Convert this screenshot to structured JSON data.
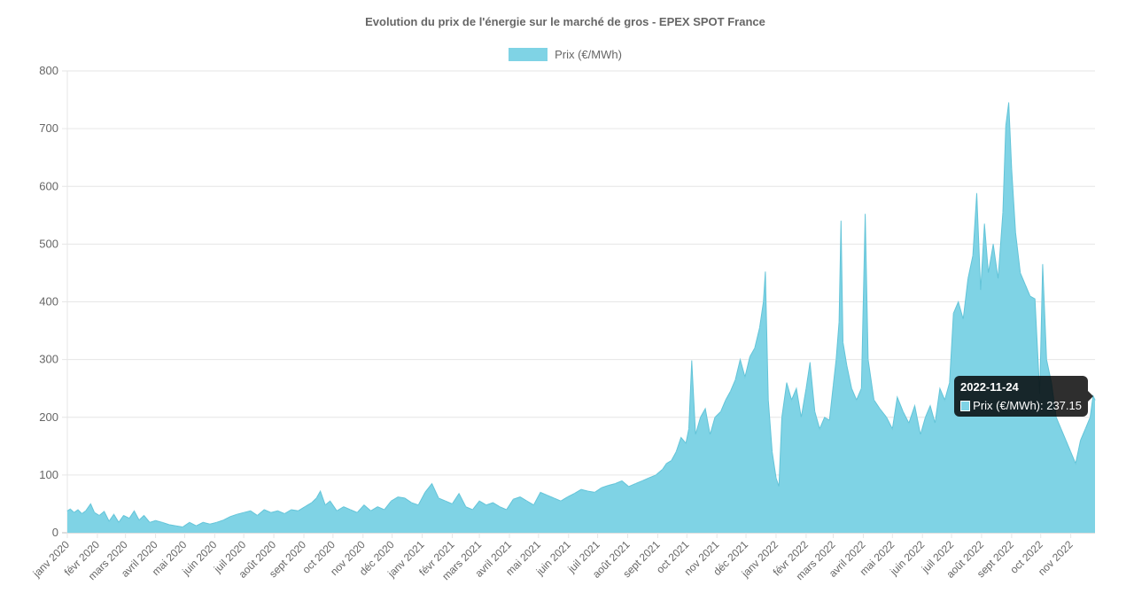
{
  "chart_data": {
    "type": "area",
    "title": "Evolution du prix de l'énergie sur le marché de gros - EPEX SPOT France",
    "legend": {
      "position": "top",
      "entries": [
        "Prix (€/MWh)"
      ]
    },
    "ylim": [
      0,
      800
    ],
    "yticks": [
      0,
      100,
      200,
      300,
      400,
      500,
      600,
      700,
      800
    ],
    "xlabels": [
      "janv 2020",
      "févr 2020",
      "mars 2020",
      "avril 2020",
      "mai 2020",
      "juin 2020",
      "juil 2020",
      "août 2020",
      "sept 2020",
      "oct 2020",
      "nov 2020",
      "déc 2020",
      "janv 2021",
      "févr 2021",
      "mars 2021",
      "avril 2021",
      "mai 2021",
      "juin 2021",
      "juil 2021",
      "août 2021",
      "sept 2021",
      "oct 2021",
      "nov 2021",
      "déc 2021",
      "janv 2022",
      "févr 2022",
      "mars 2022",
      "avril 2022",
      "mai 2022",
      "juin 2022",
      "juil 2022",
      "août 2022",
      "sept 2022",
      "oct 2022",
      "nov 2022"
    ],
    "x_start": "2020-01-01",
    "x_end": "2022-11-26",
    "grid": true,
    "color": "#7fd3e5",
    "series": [
      {
        "name": "Prix (€/MWh)",
        "points": [
          [
            "2020-01-01",
            38
          ],
          [
            "2020-01-04",
            41
          ],
          [
            "2020-01-08",
            35
          ],
          [
            "2020-01-12",
            40
          ],
          [
            "2020-01-16",
            33
          ],
          [
            "2020-01-20",
            38
          ],
          [
            "2020-01-25",
            50
          ],
          [
            "2020-01-29",
            35
          ],
          [
            "2020-02-03",
            30
          ],
          [
            "2020-02-08",
            37
          ],
          [
            "2020-02-13",
            20
          ],
          [
            "2020-02-18",
            32
          ],
          [
            "2020-02-23",
            18
          ],
          [
            "2020-02-28",
            30
          ],
          [
            "2020-03-05",
            25
          ],
          [
            "2020-03-10",
            38
          ],
          [
            "2020-03-15",
            22
          ],
          [
            "2020-03-20",
            30
          ],
          [
            "2020-03-26",
            18
          ],
          [
            "2020-04-01",
            21
          ],
          [
            "2020-04-08",
            18
          ],
          [
            "2020-04-15",
            14
          ],
          [
            "2020-04-22",
            12
          ],
          [
            "2020-04-29",
            10
          ],
          [
            "2020-05-06",
            18
          ],
          [
            "2020-05-13",
            12
          ],
          [
            "2020-05-20",
            18
          ],
          [
            "2020-05-27",
            15
          ],
          [
            "2020-06-03",
            18
          ],
          [
            "2020-06-10",
            22
          ],
          [
            "2020-06-17",
            28
          ],
          [
            "2020-06-24",
            32
          ],
          [
            "2020-07-01",
            35
          ],
          [
            "2020-07-08",
            38
          ],
          [
            "2020-07-15",
            30
          ],
          [
            "2020-07-22",
            40
          ],
          [
            "2020-07-29",
            35
          ],
          [
            "2020-08-05",
            38
          ],
          [
            "2020-08-12",
            33
          ],
          [
            "2020-08-19",
            40
          ],
          [
            "2020-08-26",
            38
          ],
          [
            "2020-09-02",
            45
          ],
          [
            "2020-09-09",
            52
          ],
          [
            "2020-09-14",
            60
          ],
          [
            "2020-09-18",
            72
          ],
          [
            "2020-09-23",
            48
          ],
          [
            "2020-09-28",
            55
          ],
          [
            "2020-10-05",
            38
          ],
          [
            "2020-10-12",
            45
          ],
          [
            "2020-10-19",
            40
          ],
          [
            "2020-10-26",
            35
          ],
          [
            "2020-11-02",
            48
          ],
          [
            "2020-11-09",
            38
          ],
          [
            "2020-11-16",
            45
          ],
          [
            "2020-11-23",
            40
          ],
          [
            "2020-11-30",
            55
          ],
          [
            "2020-12-07",
            62
          ],
          [
            "2020-12-14",
            60
          ],
          [
            "2020-12-21",
            52
          ],
          [
            "2020-12-28",
            48
          ],
          [
            "2021-01-04",
            70
          ],
          [
            "2021-01-11",
            85
          ],
          [
            "2021-01-18",
            60
          ],
          [
            "2021-01-25",
            55
          ],
          [
            "2021-02-01",
            50
          ],
          [
            "2021-02-08",
            68
          ],
          [
            "2021-02-15",
            45
          ],
          [
            "2021-02-22",
            40
          ],
          [
            "2021-03-01",
            55
          ],
          [
            "2021-03-08",
            48
          ],
          [
            "2021-03-15",
            52
          ],
          [
            "2021-03-22",
            45
          ],
          [
            "2021-03-29",
            40
          ],
          [
            "2021-04-05",
            58
          ],
          [
            "2021-04-12",
            62
          ],
          [
            "2021-04-19",
            55
          ],
          [
            "2021-04-26",
            48
          ],
          [
            "2021-05-03",
            70
          ],
          [
            "2021-05-10",
            65
          ],
          [
            "2021-05-17",
            60
          ],
          [
            "2021-05-24",
            55
          ],
          [
            "2021-05-31",
            62
          ],
          [
            "2021-06-07",
            68
          ],
          [
            "2021-06-14",
            75
          ],
          [
            "2021-06-21",
            72
          ],
          [
            "2021-06-28",
            70
          ],
          [
            "2021-07-05",
            78
          ],
          [
            "2021-07-12",
            82
          ],
          [
            "2021-07-19",
            85
          ],
          [
            "2021-07-26",
            90
          ],
          [
            "2021-08-02",
            80
          ],
          [
            "2021-08-09",
            85
          ],
          [
            "2021-08-16",
            90
          ],
          [
            "2021-08-23",
            95
          ],
          [
            "2021-08-30",
            100
          ],
          [
            "2021-09-06",
            110
          ],
          [
            "2021-09-10",
            120
          ],
          [
            "2021-09-15",
            125
          ],
          [
            "2021-09-20",
            140
          ],
          [
            "2021-09-25",
            165
          ],
          [
            "2021-09-30",
            155
          ],
          [
            "2021-10-03",
            180
          ],
          [
            "2021-10-06",
            298
          ],
          [
            "2021-10-10",
            170
          ],
          [
            "2021-10-15",
            200
          ],
          [
            "2021-10-20",
            215
          ],
          [
            "2021-10-25",
            170
          ],
          [
            "2021-10-30",
            200
          ],
          [
            "2021-11-05",
            210
          ],
          [
            "2021-11-10",
            230
          ],
          [
            "2021-11-15",
            245
          ],
          [
            "2021-11-20",
            265
          ],
          [
            "2021-11-25",
            300
          ],
          [
            "2021-11-30",
            270
          ],
          [
            "2021-12-05",
            305
          ],
          [
            "2021-12-10",
            320
          ],
          [
            "2021-12-15",
            355
          ],
          [
            "2021-12-19",
            400
          ],
          [
            "2021-12-21",
            452
          ],
          [
            "2021-12-24",
            230
          ],
          [
            "2021-12-28",
            140
          ],
          [
            "2022-01-01",
            95
          ],
          [
            "2022-01-04",
            80
          ],
          [
            "2022-01-07",
            200
          ],
          [
            "2022-01-12",
            260
          ],
          [
            "2022-01-17",
            230
          ],
          [
            "2022-01-22",
            250
          ],
          [
            "2022-01-27",
            200
          ],
          [
            "2022-02-01",
            250
          ],
          [
            "2022-02-05",
            295
          ],
          [
            "2022-02-10",
            210
          ],
          [
            "2022-02-15",
            180
          ],
          [
            "2022-02-20",
            200
          ],
          [
            "2022-02-25",
            195
          ],
          [
            "2022-03-01",
            255
          ],
          [
            "2022-03-04",
            300
          ],
          [
            "2022-03-07",
            365
          ],
          [
            "2022-03-09",
            540
          ],
          [
            "2022-03-11",
            330
          ],
          [
            "2022-03-15",
            290
          ],
          [
            "2022-03-20",
            250
          ],
          [
            "2022-03-25",
            230
          ],
          [
            "2022-03-30",
            250
          ],
          [
            "2022-04-03",
            552
          ],
          [
            "2022-04-06",
            300
          ],
          [
            "2022-04-12",
            230
          ],
          [
            "2022-04-18",
            215
          ],
          [
            "2022-04-25",
            200
          ],
          [
            "2022-05-01",
            180
          ],
          [
            "2022-05-06",
            235
          ],
          [
            "2022-05-12",
            210
          ],
          [
            "2022-05-18",
            190
          ],
          [
            "2022-05-24",
            220
          ],
          [
            "2022-05-30",
            170
          ],
          [
            "2022-06-04",
            200
          ],
          [
            "2022-06-09",
            220
          ],
          [
            "2022-06-14",
            190
          ],
          [
            "2022-06-19",
            250
          ],
          [
            "2022-06-24",
            230
          ],
          [
            "2022-06-29",
            260
          ],
          [
            "2022-07-03",
            380
          ],
          [
            "2022-07-08",
            400
          ],
          [
            "2022-07-13",
            370
          ],
          [
            "2022-07-18",
            440
          ],
          [
            "2022-07-23",
            480
          ],
          [
            "2022-07-27",
            588
          ],
          [
            "2022-07-31",
            420
          ],
          [
            "2022-08-04",
            535
          ],
          [
            "2022-08-08",
            450
          ],
          [
            "2022-08-13",
            500
          ],
          [
            "2022-08-18",
            440
          ],
          [
            "2022-08-23",
            555
          ],
          [
            "2022-08-26",
            705
          ],
          [
            "2022-08-29",
            745
          ],
          [
            "2022-09-01",
            630
          ],
          [
            "2022-09-05",
            520
          ],
          [
            "2022-09-10",
            450
          ],
          [
            "2022-09-15",
            430
          ],
          [
            "2022-09-20",
            410
          ],
          [
            "2022-09-25",
            405
          ],
          [
            "2022-09-30",
            240
          ],
          [
            "2022-10-03",
            465
          ],
          [
            "2022-10-07",
            300
          ],
          [
            "2022-10-12",
            260
          ],
          [
            "2022-10-17",
            200
          ],
          [
            "2022-10-22",
            180
          ],
          [
            "2022-10-27",
            160
          ],
          [
            "2022-11-01",
            140
          ],
          [
            "2022-11-06",
            120
          ],
          [
            "2022-11-11",
            160
          ],
          [
            "2022-11-16",
            180
          ],
          [
            "2022-11-21",
            200
          ],
          [
            "2022-11-24",
            237.15
          ],
          [
            "2022-11-26",
            230
          ]
        ]
      }
    ]
  },
  "tooltip": {
    "title": "2022-11-24",
    "label": "Prix (€/MWh): 237.15"
  }
}
